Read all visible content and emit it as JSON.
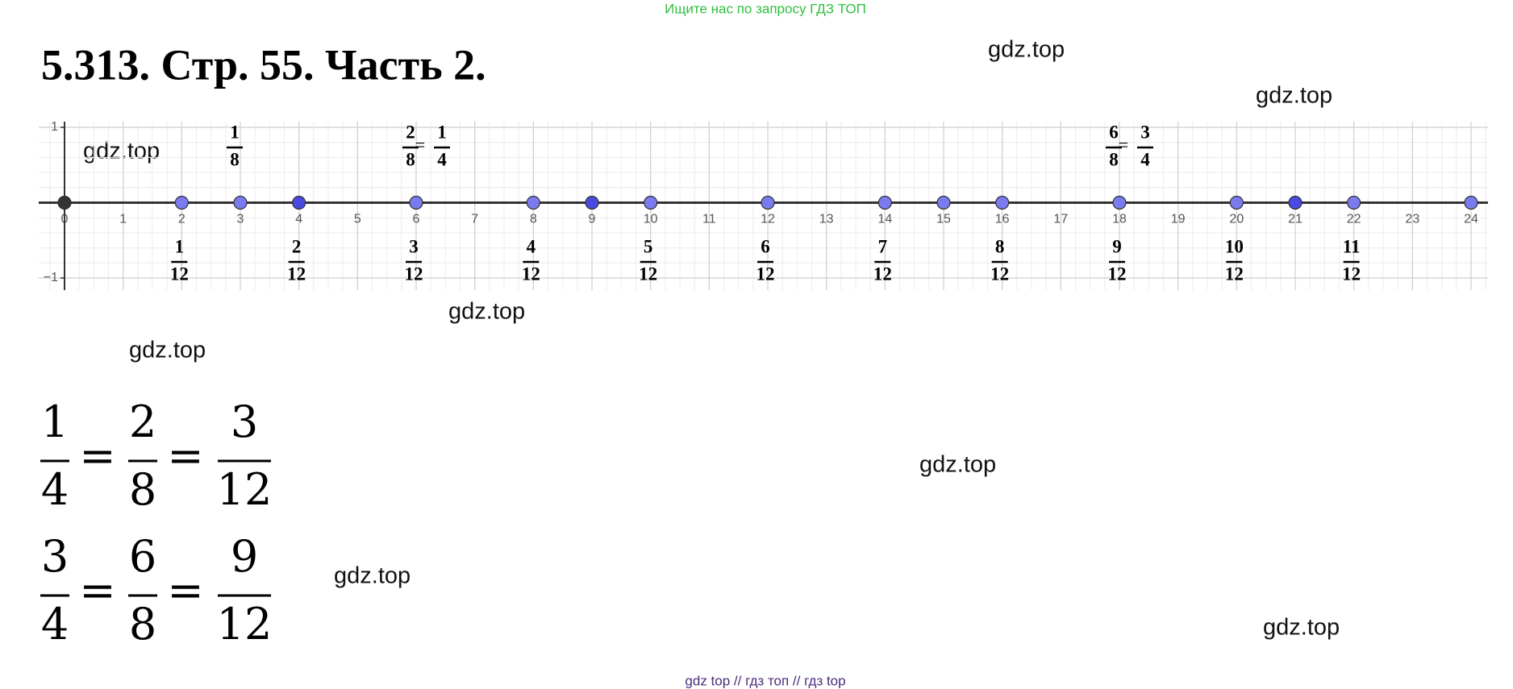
{
  "banner": "Ищите нас по запросу ГДЗ ТОП",
  "title": "5.313. Стр. 55. Часть 2.",
  "watermarks": [
    "gdz.top",
    "gdz.top",
    "gdz.top",
    "gdz.top",
    "gdz.top",
    "gdz.top",
    "gdz.top",
    "gdz.top"
  ],
  "number_line": {
    "xlim": [
      0,
      24
    ],
    "ylim": [
      -1,
      1
    ],
    "xticks": [
      0,
      1,
      2,
      3,
      4,
      5,
      6,
      7,
      8,
      9,
      10,
      11,
      12,
      13,
      14,
      15,
      16,
      17,
      18,
      19,
      20,
      21,
      22,
      23,
      24
    ],
    "yticks": [
      1,
      {
        "value": -1,
        "label": "−1"
      }
    ],
    "points": [
      0,
      2,
      3,
      4,
      6,
      8,
      9,
      10,
      12,
      14,
      15,
      16,
      18,
      20,
      21,
      22,
      24
    ],
    "point_colors": [
      "#333333",
      "#7b7bf0",
      "#7b7bf0",
      "#4a4ae0",
      "#7b7bf0",
      "#7b7bf0",
      "#4a4ae0",
      "#7b7bf0",
      "#7b7bf0",
      "#7b7bf0",
      "#7b7bf0",
      "#7b7bf0",
      "#7b7bf0",
      "#7b7bf0",
      "#4a4ae0",
      "#7b7bf0",
      "#7b7bf0"
    ],
    "labels_above": [
      {
        "fractions": [
          {
            "n": "1",
            "d": "8"
          }
        ]
      },
      {
        "fractions": [
          {
            "n": "2",
            "d": "8"
          },
          {
            "n": "1",
            "d": "4"
          }
        ],
        "sign": "="
      },
      {
        "fractions": [
          {
            "n": "6",
            "d": "8"
          },
          {
            "n": "3",
            "d": "4"
          }
        ],
        "sign": "="
      }
    ],
    "labels_below": [
      {
        "n": "1",
        "d": "12"
      },
      {
        "n": "2",
        "d": "12"
      },
      {
        "n": "3",
        "d": "12"
      },
      {
        "n": "4",
        "d": "12"
      },
      {
        "n": "5",
        "d": "12"
      },
      {
        "n": "6",
        "d": "12"
      },
      {
        "n": "7",
        "d": "12"
      },
      {
        "n": "8",
        "d": "12"
      },
      {
        "n": "9",
        "d": "12"
      },
      {
        "n": "10",
        "d": "12"
      },
      {
        "n": "11",
        "d": "12"
      }
    ]
  },
  "equations": [
    {
      "sign": "=",
      "fractions": [
        {
          "n": "1",
          "d": "4"
        },
        {
          "n": "2",
          "d": "8"
        },
        {
          "n": "3",
          "d": "12"
        }
      ]
    },
    {
      "sign": "=",
      "fractions": [
        {
          "n": "3",
          "d": "4"
        },
        {
          "n": "6",
          "d": "8"
        },
        {
          "n": "9",
          "d": "12"
        }
      ]
    }
  ],
  "footer": "gdz top  //  гдз топ  //  гдз top"
}
